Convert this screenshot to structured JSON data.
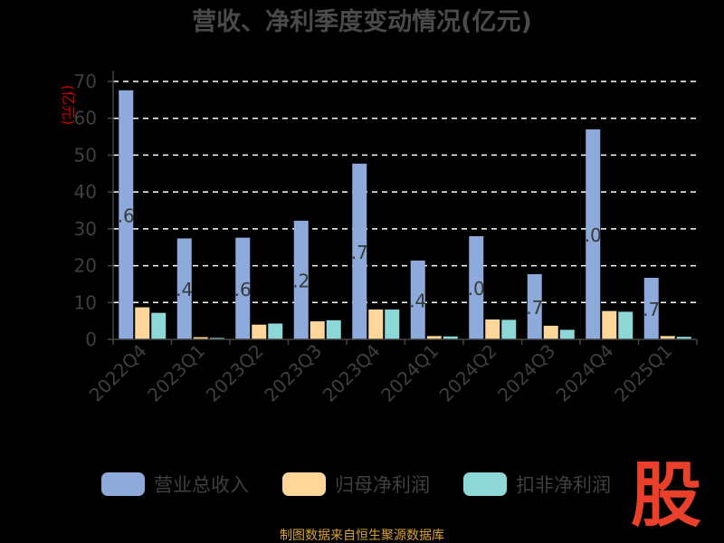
{
  "title": "营收、净利季度变动情况(亿元)",
  "source": "制图数据来自恒生聚源数据库",
  "logo": "股",
  "chart_data": {
    "type": "bar",
    "title": "营收、净利季度变动情况(亿元)",
    "ylabel": "(亿元)",
    "ylim": [
      0,
      70
    ],
    "yticks": [
      0,
      10,
      20,
      30,
      40,
      50,
      60,
      70
    ],
    "grid": true,
    "legend_position": "bottom",
    "categories": [
      "2022Q4",
      "2023Q1",
      "2023Q2",
      "2023Q3",
      "2023Q4",
      "2024Q1",
      "2024Q2",
      "2024Q3",
      "2024Q4",
      "2025Q1"
    ],
    "series": [
      {
        "name": "营业总收入",
        "color": "#8eaadb",
        "values": [
          67.6,
          27.4,
          27.6,
          32.2,
          47.7,
          21.4,
          28.0,
          17.7,
          57.0,
          16.7
        ]
      },
      {
        "name": "归母净利润",
        "color": "#ffd699",
        "values": [
          8.7,
          0.6,
          4.0,
          4.9,
          8.1,
          0.9,
          5.4,
          3.7,
          7.7,
          0.9
        ]
      },
      {
        "name": "扣非净利润",
        "color": "#8dd7d7",
        "values": [
          7.2,
          0.4,
          4.3,
          5.2,
          8.1,
          0.8,
          5.3,
          2.6,
          7.5,
          0.7
        ]
      }
    ],
    "bar_labels": [
      ".6",
      ".4",
      ".6",
      ".2",
      ".7",
      ".4",
      ".0",
      ".7",
      ".0",
      ".7"
    ]
  }
}
